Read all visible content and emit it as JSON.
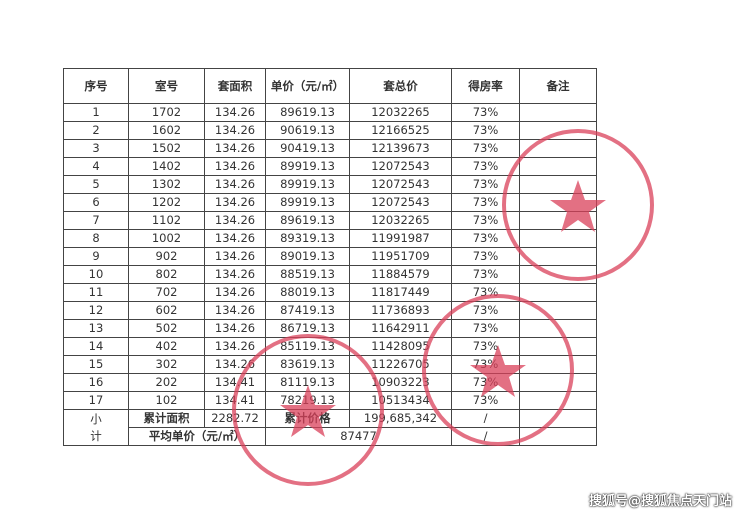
{
  "headers": [
    "序号",
    "室号",
    "套面积",
    "单价（元/㎡）",
    "套总价",
    "得房率",
    "备注"
  ],
  "rows": [
    [
      "1",
      "1702",
      "134.26",
      "89619.13",
      "12032265",
      "73%",
      ""
    ],
    [
      "2",
      "1602",
      "134.26",
      "90619.13",
      "12166525",
      "73%",
      ""
    ],
    [
      "3",
      "1502",
      "134.26",
      "90419.13",
      "12139673",
      "73%",
      ""
    ],
    [
      "4",
      "1402",
      "134.26",
      "89919.13",
      "12072543",
      "73%",
      ""
    ],
    [
      "5",
      "1302",
      "134.26",
      "89919.13",
      "12072543",
      "73%",
      ""
    ],
    [
      "6",
      "1202",
      "134.26",
      "89919.13",
      "12072543",
      "73%",
      ""
    ],
    [
      "7",
      "1102",
      "134.26",
      "89619.13",
      "12032265",
      "73%",
      ""
    ],
    [
      "8",
      "1002",
      "134.26",
      "89319.13",
      "11991987",
      "73%",
      ""
    ],
    [
      "9",
      "902",
      "134.26",
      "89019.13",
      "11951709",
      "73%",
      ""
    ],
    [
      "10",
      "802",
      "134.26",
      "88519.13",
      "11884579",
      "73%",
      ""
    ],
    [
      "11",
      "702",
      "134.26",
      "88019.13",
      "11817449",
      "73%",
      ""
    ],
    [
      "12",
      "602",
      "134.26",
      "87419.13",
      "11736893",
      "73%",
      ""
    ],
    [
      "13",
      "502",
      "134.26",
      "86719.13",
      "11642911",
      "73%",
      ""
    ],
    [
      "14",
      "402",
      "134.26",
      "85119.13",
      "11428095",
      "73%",
      ""
    ],
    [
      "15",
      "302",
      "134.26",
      "83619.13",
      "11226705",
      "73%",
      ""
    ],
    [
      "16",
      "202",
      "134.41",
      "81119.13",
      "10903223",
      "73%",
      ""
    ],
    [
      "17",
      "102",
      "134.41",
      "78219.13",
      "10513434",
      "73%",
      ""
    ]
  ],
  "summary": {
    "label": "小计",
    "total_area_label": "累计面积",
    "total_area": "2282.72",
    "total_price_label": "累计价格",
    "total_price": "199,685,342",
    "rate1": "/",
    "avg_price_label": "平均单价（元/㎡）",
    "avg_price": "87477",
    "rate2": "/"
  },
  "stamp_color": "#d9405a",
  "watermark": "搜狐号@搜狐焦点天门站"
}
